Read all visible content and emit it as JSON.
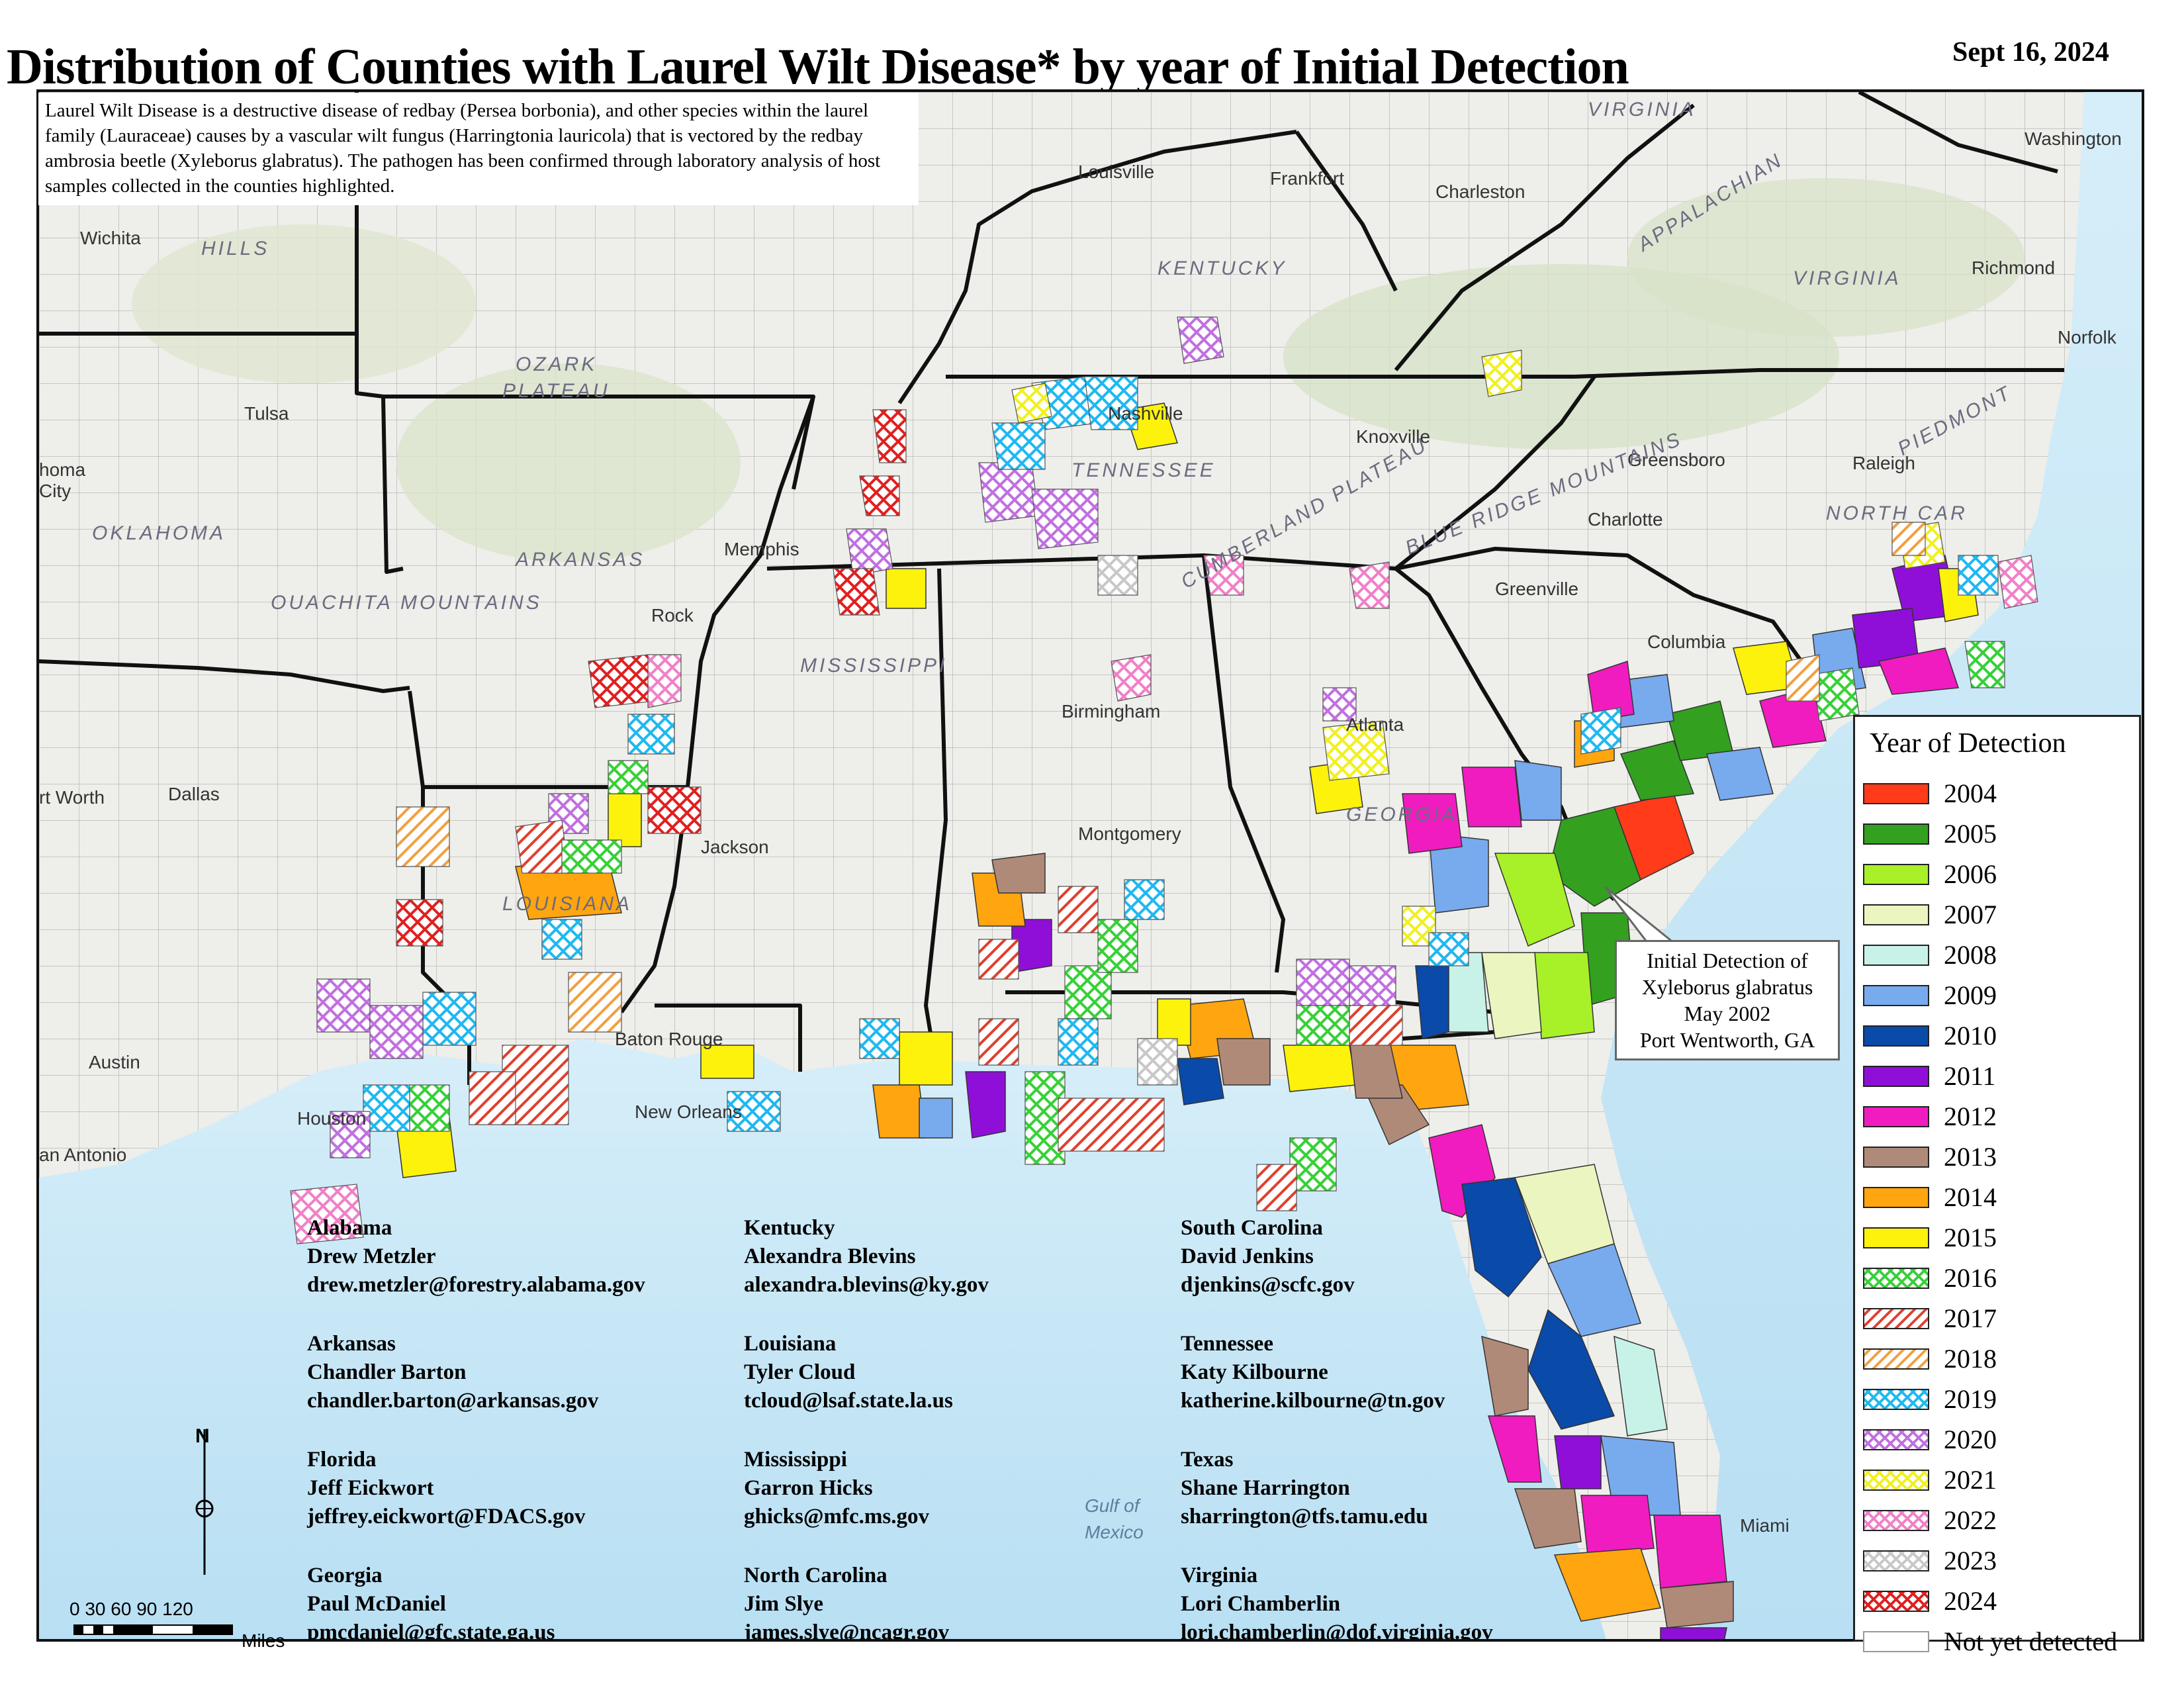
{
  "title": "Distribution of Counties with Laurel Wilt Disease* by year of Initial Detection",
  "date": "Sept 16, 2024",
  "intro": "Laurel Wilt Disease is a destructive disease of redbay (Persea borbonia), and other species within the laurel family (Lauraceae) causes by a vascular wilt fungus (Harringtonia lauricola) that is vectored by the redbay ambrosia beetle (Xyleborus glabratus). The pathogen has been confirmed through laboratory analysis of host samples collected in the counties highlighted.",
  "callout": {
    "line1": "Initial Detection of",
    "line2": "Xyleborus glabratus",
    "line3": "May 2002",
    "line4": "Port Wentworth, GA"
  },
  "legend": {
    "title": "Year of Detection",
    "items": [
      {
        "label": "2004",
        "color": "#ff3b1a",
        "pattern": "solid"
      },
      {
        "label": "2005",
        "color": "#33a020",
        "pattern": "solid"
      },
      {
        "label": "2006",
        "color": "#a8f028",
        "pattern": "solid"
      },
      {
        "label": "2007",
        "color": "#eaf5c0",
        "pattern": "solid"
      },
      {
        "label": "2008",
        "color": "#c8f2e8",
        "pattern": "solid"
      },
      {
        "label": "2009",
        "color": "#78aaee",
        "pattern": "solid"
      },
      {
        "label": "2010",
        "color": "#0a4aa8",
        "pattern": "solid"
      },
      {
        "label": "2011",
        "color": "#8f0fd8",
        "pattern": "solid"
      },
      {
        "label": "2012",
        "color": "#f01cc0",
        "pattern": "solid"
      },
      {
        "label": "2013",
        "color": "#b08a78",
        "pattern": "solid"
      },
      {
        "label": "2014",
        "color": "#ffa510",
        "pattern": "solid"
      },
      {
        "label": "2015",
        "color": "#fcf20c",
        "pattern": "solid"
      },
      {
        "label": "2016",
        "color": "#38d038",
        "pattern": "cross"
      },
      {
        "label": "2017",
        "color": "#e04030",
        "pattern": "diag"
      },
      {
        "label": "2018",
        "color": "#f0a040",
        "pattern": "diag"
      },
      {
        "label": "2019",
        "color": "#20b8f0",
        "pattern": "cross"
      },
      {
        "label": "2020",
        "color": "#c070e0",
        "pattern": "cross"
      },
      {
        "label": "2021",
        "color": "#f0f020",
        "pattern": "cross"
      },
      {
        "label": "2022",
        "color": "#f080c8",
        "pattern": "cross"
      },
      {
        "label": "2023",
        "color": "#c8c8c8",
        "pattern": "cross"
      },
      {
        "label": "2024",
        "color": "#e02020",
        "pattern": "cross"
      },
      {
        "label": "Not yet detected",
        "color": "#ffffff",
        "pattern": "solid"
      }
    ]
  },
  "contacts": [
    {
      "state": "Alabama",
      "name": "Drew Metzler",
      "email": "drew.metzler@forestry.alabama.gov"
    },
    {
      "state": "Arkansas",
      "name": "Chandler Barton",
      "email": "chandler.barton@arkansas.gov"
    },
    {
      "state": "Florida",
      "name": "Jeff Eickwort",
      "email": "jeffrey.eickwort@FDACS.gov"
    },
    {
      "state": "Georgia",
      "name": "Paul McDaniel",
      "email": "pmcdaniel@gfc.state.ga.us"
    },
    {
      "state": "Kentucky",
      "name": "Alexandra Blevins",
      "email": "alexandra.blevins@ky.gov"
    },
    {
      "state": "Louisiana",
      "name": "Tyler Cloud",
      "email": "tcloud@lsaf.state.la.us"
    },
    {
      "state": "Mississippi",
      "name": "Garron Hicks",
      "email": "ghicks@mfc.ms.gov"
    },
    {
      "state": "North Carolina",
      "name": "Jim Slye",
      "email": "james.slye@ncagr.gov"
    },
    {
      "state": "South Carolina",
      "name": "David Jenkins",
      "email": "djenkins@scfc.gov"
    },
    {
      "state": "Tennessee",
      "name": "Katy Kilbourne",
      "email": "katherine.kilbourne@tn.gov"
    },
    {
      "state": "Texas",
      "name": "Shane Harrington",
      "email": "sharrington@tfs.tamu.edu"
    },
    {
      "state": "Virginia",
      "name": "Lori Chamberlin",
      "email": "lori.chamberlin@dof.virginia.gov"
    }
  ],
  "scale": {
    "ticks": "0   30   60   90  120",
    "unit": "Miles"
  },
  "places": {
    "wichita": "Wichita",
    "hills": "HILLS",
    "tulsa": "Tulsa",
    "okc": "homa\nCity",
    "oklahoma": "OKLAHOMA",
    "ozark": "OZARK",
    "plateau": "PLATEAU",
    "ouachita": "OUACHITA MOUNTAINS",
    "arkansas": "ARKANSAS",
    "littlerock": "Rock",
    "memphis": "Memphis",
    "nashville": "Nashville",
    "tennessee": "TENNESSEE",
    "knoxville": "Knoxville",
    "louisville": "Louisville",
    "frankfort": "Frankfort",
    "kentucky": "KENTUCKY",
    "charleston_wv": "Charleston",
    "virginia_top": "VIRGINIA",
    "washington": "Washington",
    "richmond": "Richmond",
    "virginia": "VIRGINIA",
    "norfolk": "Norfolk",
    "greensboro": "Greensboro",
    "raleigh": "Raleigh",
    "charlotte": "Charlotte",
    "greenville": "Greenville",
    "columbia": "Columbia",
    "atlanta": "Atlanta",
    "birmingham": "Birmingham",
    "montgomery": "Montgomery",
    "mississippi": "MISSISSIPPI",
    "jackson": "Jackson",
    "louisiana": "LOUISIANA",
    "batonrouge": "Baton Rouge",
    "neworleans": "New Orleans",
    "dallas": "Dallas",
    "fortworth": "rt Worth",
    "austin": "Austin",
    "houston": "Houston",
    "sanantonio": "an Antonio",
    "miami": "Miami",
    "gulf1": "Gulf of",
    "gulf2": "Mexico",
    "appalachian": "APPALACHIAN",
    "blueridge": "BLUE RIDGE MOUNTAINS",
    "piedmont": "PIEDMONT",
    "cumberland": "CUMBERLAND PLATEAU",
    "georgia": "GEORGIA",
    "northcarolina": "NORTH CAR"
  }
}
